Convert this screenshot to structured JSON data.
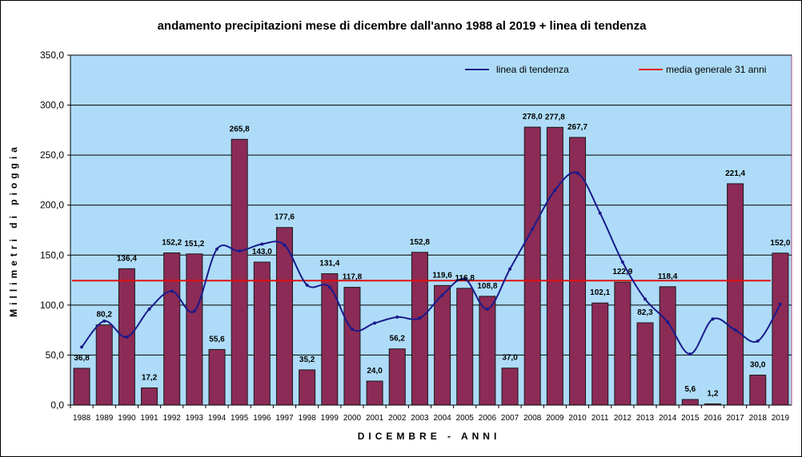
{
  "chart_data": {
    "type": "bar",
    "title": "andamento precipitazioni mese di dicembre dall'anno 1988 al 2019 + linea di tendenza",
    "xlabel": "DICEMBRE - ANNI",
    "ylabel": "Millimetri di pioggia",
    "ylim": [
      0,
      350
    ],
    "yticks": [
      "0,0",
      "50,0",
      "100,0",
      "150,0",
      "200,0",
      "250,0",
      "300,0",
      "350,0"
    ],
    "ytick_values": [
      0,
      50,
      100,
      150,
      200,
      250,
      300,
      350
    ],
    "grid": true,
    "legend_position": "top-right",
    "categories": [
      "1988",
      "1989",
      "1990",
      "1991",
      "1992",
      "1993",
      "1994",
      "1995",
      "1996",
      "1997",
      "1998",
      "1999",
      "2000",
      "2001",
      "2002",
      "2003",
      "2004",
      "2005",
      "2006",
      "2007",
      "2008",
      "2009",
      "2010",
      "2011",
      "2012",
      "2013",
      "2014",
      "2015",
      "2016",
      "2017",
      "2018",
      "2019"
    ],
    "values": [
      36.8,
      80.2,
      136.4,
      17.2,
      152.2,
      151.2,
      55.6,
      265.8,
      143.0,
      177.6,
      35.2,
      131.4,
      117.8,
      24.0,
      56.2,
      152.8,
      119.6,
      116.8,
      108.8,
      37.0,
      278.0,
      277.8,
      267.7,
      102.1,
      122.9,
      82.3,
      118.4,
      5.6,
      1.2,
      221.4,
      30.0,
      152.0
    ],
    "value_labels": [
      "36,8",
      "80,2",
      "136,4",
      "17,2",
      "152,2",
      "151,2",
      "55,6",
      "265,8",
      "143,0",
      "177,6",
      "35,2",
      "131,4",
      "117,8",
      "24,0",
      "56,2",
      "152,8",
      "119,6",
      "116,8",
      "108,8",
      "37,0",
      "278,0",
      "277,8",
      "267,7",
      "102,1",
      "122,9",
      "82,3",
      "118,4",
      "5,6",
      "1,2",
      "221,4",
      "30,0",
      "152,0"
    ],
    "highlight_last_label_color": "#1f3fbf",
    "series": [
      {
        "name": "linea di tendenza",
        "type": "line",
        "color": "#1a1a8c",
        "values": [
          58,
          84,
          68,
          96,
          114,
          94,
          156,
          154,
          161,
          160,
          120,
          118,
          76,
          82,
          88,
          87,
          110,
          126,
          96,
          136,
          176,
          215,
          232,
          192,
          143,
          106,
          83,
          51,
          86,
          75,
          64,
          101
        ]
      },
      {
        "name": "media generale 31 anni",
        "type": "hline",
        "color": "#e01010",
        "value": 124.5
      }
    ],
    "colors": {
      "plot_background": "#aedcf8",
      "bar_fill": "#8b2b56",
      "bar_stroke": "#1a1a1a"
    }
  }
}
